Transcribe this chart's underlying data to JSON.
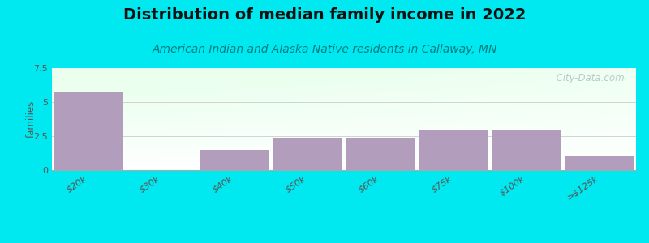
{
  "title": "Distribution of median family income in 2022",
  "subtitle": "American Indian and Alaska Native residents in Callaway, MN",
  "categories": [
    "$20k",
    "$30k",
    "$40k",
    "$50k",
    "$60k",
    "$75k",
    "$100k",
    ">$125k"
  ],
  "values": [
    5.7,
    0,
    1.5,
    2.4,
    2.4,
    2.9,
    3.0,
    1.0
  ],
  "bar_color": "#b39dbd",
  "bar_color_empty": "#c8e6c9",
  "ylabel": "families",
  "ylim": [
    0,
    7.5
  ],
  "yticks": [
    0,
    2.5,
    5,
    7.5
  ],
  "bg_outer": "#00e8f0",
  "title_fontsize": 14,
  "subtitle_fontsize": 10,
  "subtitle_color": "#007b7f",
  "watermark": "  City-Data.com",
  "watermark_color": "#aab8c2"
}
